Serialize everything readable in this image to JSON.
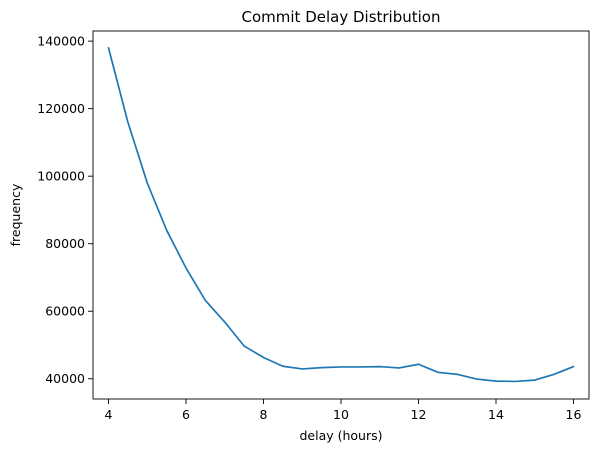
{
  "chart_data": {
    "type": "line",
    "title": "Commit Delay Distribution",
    "xlabel": "delay (hours)",
    "ylabel": "frequency",
    "xlim": [
      3.6,
      16.4
    ],
    "ylim": [
      34000,
      143000
    ],
    "xticks": [
      4,
      6,
      8,
      10,
      12,
      14,
      16
    ],
    "yticks": [
      40000,
      60000,
      80000,
      100000,
      120000,
      140000
    ],
    "grid": false,
    "series": [
      {
        "color": "#1f77b4",
        "x": [
          4,
          4.5,
          5,
          5.5,
          6,
          6.5,
          7,
          7.5,
          8,
          8.5,
          9,
          9.5,
          10,
          10.5,
          11,
          11.5,
          12,
          12.5,
          13,
          13.5,
          14,
          14.5,
          15,
          15.5,
          16
        ],
        "y": [
          138000,
          116000,
          98000,
          84000,
          72800,
          63200,
          56800,
          49700,
          46300,
          43700,
          42900,
          43300,
          43500,
          43500,
          43600,
          43200,
          44300,
          41900,
          41300,
          39900,
          39300,
          39200,
          39600,
          41300,
          43600
        ]
      }
    ]
  }
}
